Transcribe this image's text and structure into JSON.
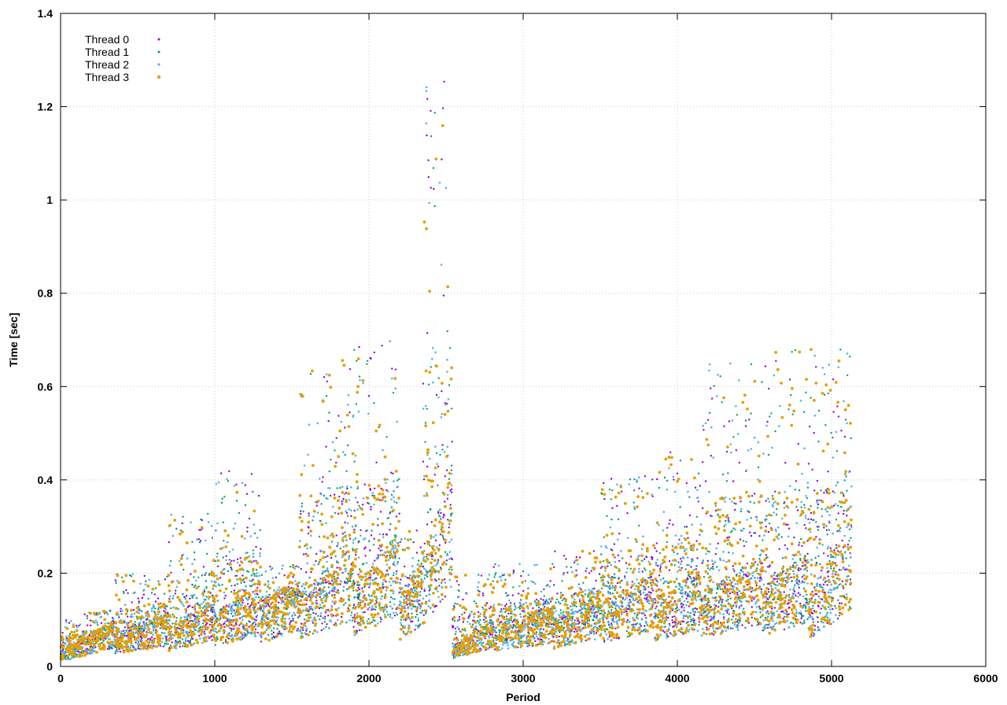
{
  "chart_data": {
    "type": "scatter",
    "title": "",
    "xlabel": "Period",
    "ylabel": "Time [sec]",
    "xlim": [
      0,
      6000
    ],
    "ylim": [
      0,
      1.4
    ],
    "x_ticks": [
      "0",
      "1000",
      "2000",
      "3000",
      "4000",
      "5000",
      "6000"
    ],
    "y_ticks": [
      "0",
      "0.2",
      "0.4",
      "0.6",
      "0.8",
      "1",
      "1.2",
      "1.4"
    ],
    "grid": true,
    "legend_position": "top-left",
    "description_note": "",
    "series": [
      {
        "name": "Thread 0",
        "color": "#9400d3"
      },
      {
        "name": "Thread 1",
        "color": "#009e73"
      },
      {
        "name": "Thread 2",
        "color": "#56b4e9"
      },
      {
        "name": "Thread 3",
        "color": "#e69f00"
      }
    ],
    "segments": [
      {
        "x_start": 0,
        "x_end": 150,
        "base": [
          0.02,
          0.04
        ],
        "peak": 0.1
      },
      {
        "x_start": 150,
        "x_end": 350,
        "base": [
          0.04,
          0.07
        ],
        "peak": 0.12
      },
      {
        "x_start": 350,
        "x_end": 700,
        "base": [
          0.05,
          0.08
        ],
        "peak": 0.2
      },
      {
        "x_start": 700,
        "x_end": 1000,
        "base": [
          0.06,
          0.1
        ],
        "peak": 0.33
      },
      {
        "x_start": 1000,
        "x_end": 1300,
        "base": [
          0.08,
          0.12
        ],
        "peak": 0.42
      },
      {
        "x_start": 1300,
        "x_end": 1550,
        "base": [
          0.09,
          0.14
        ],
        "peak": 0.22
      },
      {
        "x_start": 1550,
        "x_end": 1900,
        "base": [
          0.11,
          0.18
        ],
        "peak": 0.66
      },
      {
        "x_start": 1900,
        "x_end": 2200,
        "base": [
          0.12,
          0.2
        ],
        "peak": 0.7
      },
      {
        "x_start": 2200,
        "x_end": 2350,
        "base": [
          0.1,
          0.16
        ],
        "peak": 0.3
      },
      {
        "x_start": 2350,
        "x_end": 2540,
        "base": [
          0.16,
          0.3
        ],
        "peak": 1.27
      },
      {
        "x_start": 2540,
        "x_end": 2800,
        "base": [
          0.03,
          0.07
        ],
        "peak": 0.2
      },
      {
        "x_start": 2800,
        "x_end": 3200,
        "base": [
          0.06,
          0.09
        ],
        "peak": 0.22
      },
      {
        "x_start": 3200,
        "x_end": 3500,
        "base": [
          0.07,
          0.11
        ],
        "peak": 0.25
      },
      {
        "x_start": 3500,
        "x_end": 3850,
        "base": [
          0.09,
          0.14
        ],
        "peak": 0.41
      },
      {
        "x_start": 3850,
        "x_end": 4150,
        "base": [
          0.1,
          0.14
        ],
        "peak": 0.46
      },
      {
        "x_start": 4150,
        "x_end": 4550,
        "base": [
          0.11,
          0.16
        ],
        "peak": 0.65
      },
      {
        "x_start": 4550,
        "x_end": 4850,
        "base": [
          0.12,
          0.17
        ],
        "peak": 0.68
      },
      {
        "x_start": 4850,
        "x_end": 5130,
        "base": [
          0.1,
          0.22
        ],
        "peak": 0.68
      }
    ]
  }
}
